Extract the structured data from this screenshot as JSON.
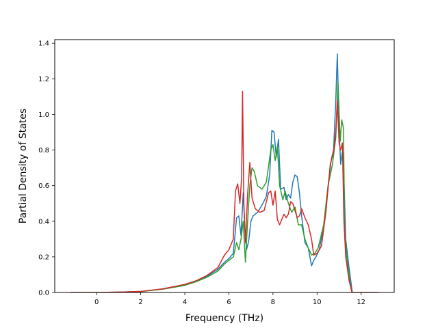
{
  "chart_data": {
    "type": "line",
    "title": "",
    "xlabel": "Frequency (THz)",
    "ylabel": "Partial Density of States",
    "xlim": [
      -1.9,
      13.5
    ],
    "ylim": [
      0,
      1.42
    ],
    "xticks": [
      0,
      2,
      4,
      6,
      8,
      10,
      12
    ],
    "yticks": [
      0.0,
      0.2,
      0.4,
      0.6,
      0.8,
      1.0,
      1.2,
      1.4
    ],
    "xtick_labels": [
      "0",
      "2",
      "4",
      "6",
      "8",
      "10",
      "12"
    ],
    "ytick_labels": [
      "0.0",
      "0.2",
      "0.4",
      "0.6",
      "0.8",
      "1.0",
      "1.2",
      "1.4"
    ],
    "grid": false,
    "legend": false,
    "series": [
      {
        "color": "#1f77b4",
        "x": [
          -1.2,
          0,
          1,
          2,
          3,
          4,
          4.5,
          5,
          5.5,
          5.8,
          6.0,
          6.2,
          6.35,
          6.45,
          6.55,
          6.65,
          6.72,
          6.8,
          6.9,
          7.0,
          7.1,
          7.3,
          7.5,
          7.7,
          7.85,
          7.95,
          8.05,
          8.15,
          8.25,
          8.35,
          8.5,
          8.6,
          8.7,
          8.8,
          8.9,
          9.0,
          9.1,
          9.2,
          9.3,
          9.45,
          9.6,
          9.75,
          9.85,
          9.95,
          10.1,
          10.3,
          10.5,
          10.65,
          10.75,
          10.85,
          10.92,
          11.0,
          11.07,
          11.15,
          11.2,
          11.3,
          11.45,
          11.6,
          12.8
        ],
        "y": [
          0,
          0,
          0.002,
          0.006,
          0.02,
          0.045,
          0.065,
          0.09,
          0.13,
          0.17,
          0.19,
          0.22,
          0.42,
          0.43,
          0.32,
          0.56,
          0.37,
          0.24,
          0.29,
          0.4,
          0.43,
          0.45,
          0.49,
          0.54,
          0.66,
          0.91,
          0.9,
          0.76,
          0.86,
          0.58,
          0.59,
          0.52,
          0.55,
          0.53,
          0.62,
          0.66,
          0.65,
          0.56,
          0.43,
          0.28,
          0.25,
          0.15,
          0.18,
          0.2,
          0.24,
          0.37,
          0.6,
          0.75,
          0.8,
          1.08,
          1.34,
          0.92,
          0.72,
          0.79,
          0.73,
          0.3,
          0.14,
          0.0,
          0
        ]
      },
      {
        "color": "#2ca02c",
        "x": [
          -1.2,
          0,
          1,
          2,
          3,
          4,
          4.5,
          5,
          5.5,
          5.8,
          6.0,
          6.2,
          6.35,
          6.45,
          6.55,
          6.65,
          6.75,
          6.85,
          6.95,
          7.05,
          7.15,
          7.3,
          7.5,
          7.7,
          7.9,
          8.0,
          8.1,
          8.2,
          8.3,
          8.45,
          8.55,
          8.7,
          8.85,
          9.0,
          9.15,
          9.3,
          9.45,
          9.6,
          9.75,
          9.9,
          10.05,
          10.3,
          10.5,
          10.7,
          10.85,
          10.95,
          11.05,
          11.12,
          11.2,
          11.25,
          11.35,
          11.5,
          11.6,
          12.8
        ],
        "y": [
          0,
          0,
          0.002,
          0.005,
          0.018,
          0.04,
          0.06,
          0.085,
          0.12,
          0.16,
          0.18,
          0.2,
          0.28,
          0.24,
          0.3,
          0.4,
          0.17,
          0.4,
          0.6,
          0.7,
          0.68,
          0.6,
          0.58,
          0.62,
          0.8,
          0.83,
          0.74,
          0.82,
          0.6,
          0.52,
          0.57,
          0.5,
          0.45,
          0.48,
          0.38,
          0.38,
          0.3,
          0.25,
          0.21,
          0.22,
          0.25,
          0.38,
          0.6,
          0.72,
          0.87,
          1.18,
          0.85,
          0.97,
          0.92,
          0.35,
          0.2,
          0.05,
          0.0,
          0
        ]
      },
      {
        "color": "#d62728",
        "x": [
          -1.2,
          0,
          1,
          2,
          3,
          4,
          4.5,
          5,
          5.5,
          5.8,
          6.0,
          6.2,
          6.3,
          6.4,
          6.5,
          6.58,
          6.62,
          6.68,
          6.75,
          6.85,
          6.95,
          7.05,
          7.2,
          7.4,
          7.6,
          7.8,
          7.9,
          8.0,
          8.1,
          8.2,
          8.3,
          8.4,
          8.5,
          8.6,
          8.7,
          8.8,
          8.9,
          9.0,
          9.1,
          9.2,
          9.3,
          9.45,
          9.6,
          9.75,
          9.85,
          10.0,
          10.2,
          10.4,
          10.6,
          10.75,
          10.85,
          10.92,
          11.0,
          11.07,
          11.15,
          11.22,
          11.3,
          11.45,
          11.58,
          12.8
        ],
        "y": [
          0,
          0,
          0.002,
          0.006,
          0.02,
          0.045,
          0.065,
          0.095,
          0.14,
          0.21,
          0.24,
          0.3,
          0.57,
          0.61,
          0.5,
          0.65,
          1.13,
          0.5,
          0.28,
          0.55,
          0.73,
          0.53,
          0.47,
          0.45,
          0.46,
          0.56,
          0.57,
          0.49,
          0.57,
          0.41,
          0.38,
          0.41,
          0.44,
          0.42,
          0.44,
          0.51,
          0.5,
          0.46,
          0.42,
          0.43,
          0.47,
          0.42,
          0.38,
          0.3,
          0.21,
          0.22,
          0.26,
          0.45,
          0.72,
          0.79,
          0.9,
          1.08,
          0.84,
          0.8,
          0.84,
          0.4,
          0.2,
          0.07,
          0.0,
          0
        ]
      }
    ]
  }
}
